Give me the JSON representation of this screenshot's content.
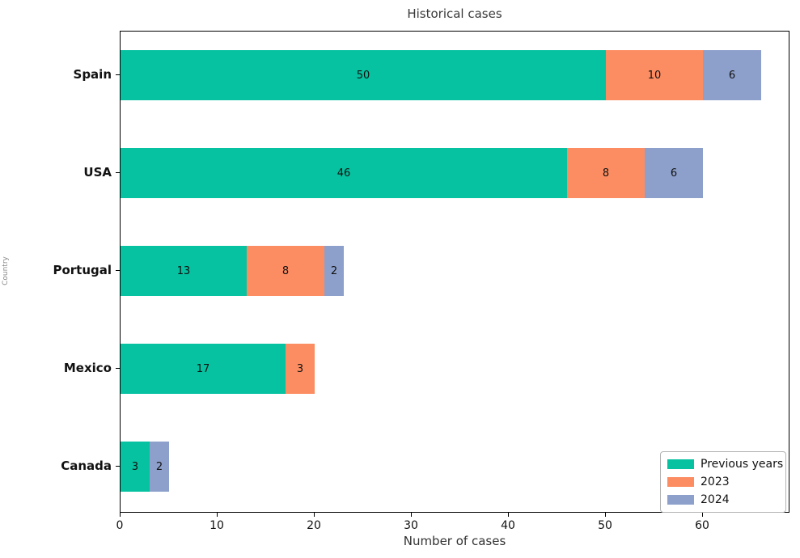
{
  "chart_data": {
    "type": "bar",
    "orientation": "horizontal",
    "stacked": true,
    "title": "Historical cases",
    "xlabel": "Number of cases",
    "ylabel": "Country",
    "categories": [
      "Spain",
      "USA",
      "Portugal",
      "Mexico",
      "Canada"
    ],
    "series": [
      {
        "name": "Previous years",
        "color": "#06C2A0",
        "values": [
          50,
          46,
          13,
          17,
          3
        ]
      },
      {
        "name": "2023",
        "color": "#FC8D62",
        "values": [
          10,
          8,
          8,
          3,
          0
        ]
      },
      {
        "name": "2024",
        "color": "#8DA0CB",
        "values": [
          6,
          6,
          2,
          0,
          2
        ]
      }
    ],
    "totals": [
      66,
      60,
      23,
      20,
      5
    ],
    "xlim": [
      0,
      69
    ],
    "xticks": [
      0,
      10,
      20,
      30,
      40,
      50,
      60
    ],
    "grid": false,
    "legend_position": "lower right"
  }
}
